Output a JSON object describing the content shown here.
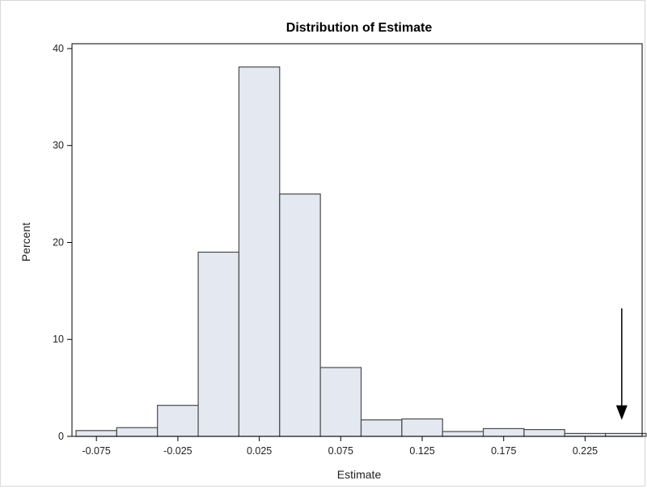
{
  "chart_data": {
    "type": "bar",
    "title": "Distribution of Estimate",
    "xlabel": "Estimate",
    "ylabel": "Percent",
    "bin_width": 0.025,
    "bin_start": -0.0875,
    "values": [
      0.6,
      0.9,
      3.2,
      19,
      38.1,
      25,
      7.1,
      1.7,
      1.8,
      0.5,
      0.8,
      0.7,
      0.3,
      0.3
    ],
    "x_ticks": [
      "-0.075",
      "-0.025",
      "0.025",
      "0.075",
      "0.125",
      "0.175",
      "0.225"
    ],
    "x_tick_values": [
      -0.075,
      -0.025,
      0.025,
      0.075,
      0.125,
      0.175,
      0.225
    ],
    "y_ticks": [
      "0",
      "10",
      "20",
      "30",
      "40"
    ],
    "y_tick_values": [
      0,
      10,
      20,
      30,
      40
    ],
    "xlim": [
      -0.0875,
      0.2625
    ],
    "ylim": [
      0,
      40.5
    ],
    "grid": false,
    "annotation": {
      "type": "arrow",
      "direction": "down",
      "x_value": 0.2475,
      "y_top": 13.2,
      "y_bottom": 1.7
    }
  }
}
